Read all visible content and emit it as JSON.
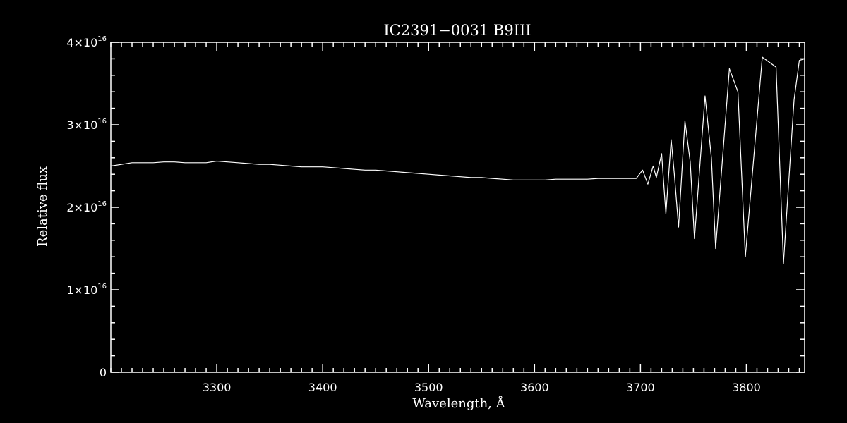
{
  "chart_data": {
    "type": "line",
    "title": "IC2391−0031   B9III",
    "xlabel": "Wavelength, Å",
    "ylabel": "Relative flux",
    "xlim": [
      3200,
      3855
    ],
    "ylim": [
      0,
      4e+16
    ],
    "x_ticks": [
      {
        "value": 3300,
        "label": "3300"
      },
      {
        "value": 3400,
        "label": "3400"
      },
      {
        "value": 3500,
        "label": "3500"
      },
      {
        "value": 3600,
        "label": "3600"
      },
      {
        "value": 3700,
        "label": "3700"
      },
      {
        "value": 3800,
        "label": "3800"
      }
    ],
    "y_ticks": [
      {
        "value": 0,
        "mantissa": "0",
        "exp": ""
      },
      {
        "value": 1e+16,
        "mantissa": "1×10",
        "exp": "16"
      },
      {
        "value": 2e+16,
        "mantissa": "2×10",
        "exp": "16"
      },
      {
        "value": 3e+16,
        "mantissa": "3×10",
        "exp": "16"
      },
      {
        "value": 4e+16,
        "mantissa": "4×10",
        "exp": "16"
      }
    ],
    "x_minor_step": 10,
    "y_minor_step": 2000000000000000.0,
    "grid": false,
    "colors": {
      "background": "#000000",
      "line": "#ffffff",
      "axes": "#ffffff"
    },
    "series": [
      {
        "x": [
          3200,
          3210,
          3220,
          3230,
          3240,
          3250,
          3260,
          3270,
          3280,
          3290,
          3300,
          3310,
          3320,
          3330,
          3340,
          3350,
          3360,
          3370,
          3380,
          3390,
          3400,
          3410,
          3420,
          3430,
          3440,
          3450,
          3460,
          3470,
          3480,
          3490,
          3500,
          3510,
          3520,
          3530,
          3540,
          3550,
          3560,
          3570,
          3580,
          3590,
          3600,
          3610,
          3620,
          3630,
          3640,
          3650,
          3660,
          3670,
          3680,
          3690,
          3696,
          3702,
          3707,
          3712,
          3715,
          3720,
          3724,
          3729,
          3732,
          3736,
          3742,
          3747,
          3751,
          3761,
          3767,
          3771,
          3784,
          3792,
          3799,
          3815,
          3828,
          3835,
          3845,
          3850,
          3855
        ],
        "y": [
          2.5e+16,
          2.52e+16,
          2.54e+16,
          2.54e+16,
          2.54e+16,
          2.55e+16,
          2.55e+16,
          2.54e+16,
          2.54e+16,
          2.54e+16,
          2.56e+16,
          2.55e+16,
          2.54e+16,
          2.53e+16,
          2.52e+16,
          2.52e+16,
          2.51e+16,
          2.5e+16,
          2.49e+16,
          2.49e+16,
          2.49e+16,
          2.48e+16,
          2.47e+16,
          2.46e+16,
          2.45e+16,
          2.45e+16,
          2.44e+16,
          2.43e+16,
          2.42e+16,
          2.41e+16,
          2.4e+16,
          2.39e+16,
          2.38e+16,
          2.37e+16,
          2.36e+16,
          2.36e+16,
          2.35e+16,
          2.34e+16,
          2.33e+16,
          2.33e+16,
          2.33e+16,
          2.33e+16,
          2.34e+16,
          2.34e+16,
          2.34e+16,
          2.34e+16,
          2.35e+16,
          2.35e+16,
          2.35e+16,
          2.35e+16,
          2.35e+16,
          2.45e+16,
          2.28e+16,
          2.5e+16,
          2.36e+16,
          2.65e+16,
          1.92e+16,
          2.82e+16,
          2.4e+16,
          1.76e+16,
          3.05e+16,
          2.55e+16,
          1.62e+16,
          3.35e+16,
          2.6e+16,
          1.5e+16,
          3.68e+16,
          3.4e+16,
          1.4e+16,
          3.82e+16,
          3.7e+16,
          1.32e+16,
          3.3e+16,
          3.78e+16,
          3.8e+16
        ]
      }
    ]
  }
}
